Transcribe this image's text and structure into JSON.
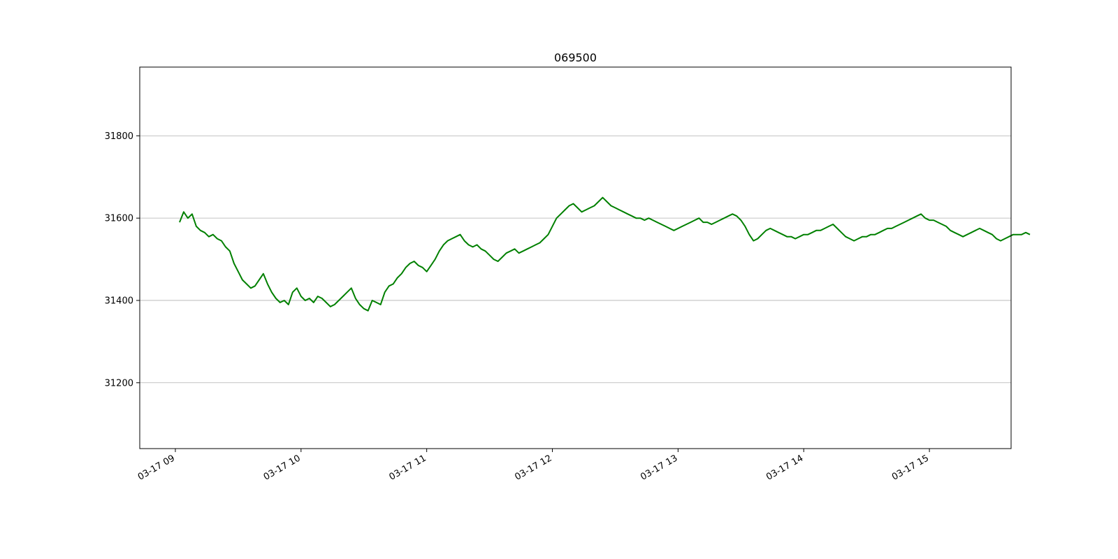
{
  "chart_data": {
    "type": "line",
    "title": "069500",
    "xlabel": "",
    "ylabel": "",
    "x_unit": "time (MM-DD HH, 2-minute steps from 09:02)",
    "xlim": [
      "03-17 08:43",
      "03-17 15:39"
    ],
    "ylim": [
      31040,
      31967
    ],
    "grid": {
      "x": false,
      "y": true
    },
    "legend": "none",
    "x_ticks": [
      "03-17 09",
      "03-17 10",
      "03-17 11",
      "03-17 12",
      "03-17 13",
      "03-17 14",
      "03-17 15"
    ],
    "y_ticks": [
      31200,
      31400,
      31600,
      31800
    ],
    "series": [
      {
        "color": "#008000",
        "x_start": "03-17 09:02",
        "x_step_minutes": 2,
        "values": [
          31590,
          31615,
          31600,
          31610,
          31580,
          31570,
          31565,
          31555,
          31560,
          31550,
          31545,
          31530,
          31520,
          31490,
          31470,
          31450,
          31440,
          31430,
          31435,
          31450,
          31465,
          31440,
          31420,
          31405,
          31395,
          31400,
          31390,
          31420,
          31430,
          31410,
          31400,
          31405,
          31395,
          31410,
          31405,
          31395,
          31385,
          31390,
          31400,
          31410,
          31420,
          31430,
          31405,
          31390,
          31380,
          31375,
          31400,
          31395,
          31390,
          31420,
          31435,
          31440,
          31455,
          31465,
          31480,
          31490,
          31495,
          31485,
          31480,
          31470,
          31485,
          31500,
          31520,
          31535,
          31545,
          31550,
          31555,
          31560,
          31545,
          31535,
          31530,
          31535,
          31525,
          31520,
          31510,
          31500,
          31495,
          31505,
          31515,
          31520,
          31525,
          31515,
          31520,
          31525,
          31530,
          31535,
          31540,
          31550,
          31560,
          31580,
          31600,
          31610,
          31620,
          31630,
          31635,
          31625,
          31615,
          31620,
          31625,
          31630,
          31640,
          31650,
          31640,
          31630,
          31625,
          31620,
          31615,
          31610,
          31605,
          31600,
          31600,
          31595,
          31600,
          31595,
          31590,
          31585,
          31580,
          31575,
          31570,
          31575,
          31580,
          31585,
          31590,
          31595,
          31600,
          31590,
          31590,
          31585,
          31590,
          31595,
          31600,
          31605,
          31610,
          31605,
          31595,
          31580,
          31560,
          31545,
          31550,
          31560,
          31570,
          31575,
          31570,
          31565,
          31560,
          31555,
          31555,
          31550,
          31555,
          31560,
          31560,
          31565,
          31570,
          31570,
          31575,
          31580,
          31585,
          31575,
          31565,
          31555,
          31550,
          31545,
          31550,
          31555,
          31555,
          31560,
          31560,
          31565,
          31570,
          31575,
          31575,
          31580,
          31585,
          31590,
          31595,
          31600,
          31605,
          31610,
          31600,
          31595,
          31595,
          31590,
          31585,
          31580,
          31570,
          31565,
          31560,
          31555,
          31560,
          31565,
          31570,
          31575,
          31570,
          31565,
          31560,
          31550,
          31545,
          31550,
          31555,
          31560,
          31560,
          31560,
          31565,
          31560
        ]
      }
    ]
  }
}
